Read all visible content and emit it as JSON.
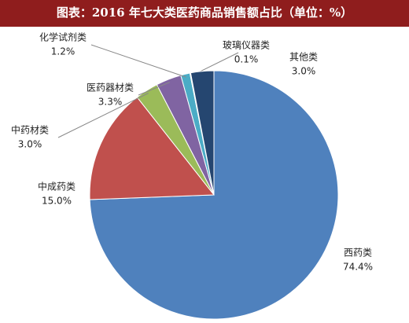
{
  "chart_data": {
    "type": "pie",
    "title": "图表：2016 年七大类医药商品销售额占比（单位：%）",
    "categories": [
      "西药类",
      "中成药类",
      "中药材类",
      "医药器材类",
      "化学试剂类",
      "玻璃仪器类",
      "其他类"
    ],
    "values": [
      74.4,
      15.0,
      3.0,
      3.3,
      1.2,
      0.1,
      3.0
    ],
    "value_labels": [
      "74.4%",
      "15.0%",
      "3.0%",
      "3.3%",
      "1.2%",
      "0.1%",
      "3.0%"
    ],
    "colors": [
      "#4f81bd",
      "#c0504d",
      "#9bbb59",
      "#8064a2",
      "#4bacc6",
      "#f79646",
      "#254670"
    ]
  }
}
